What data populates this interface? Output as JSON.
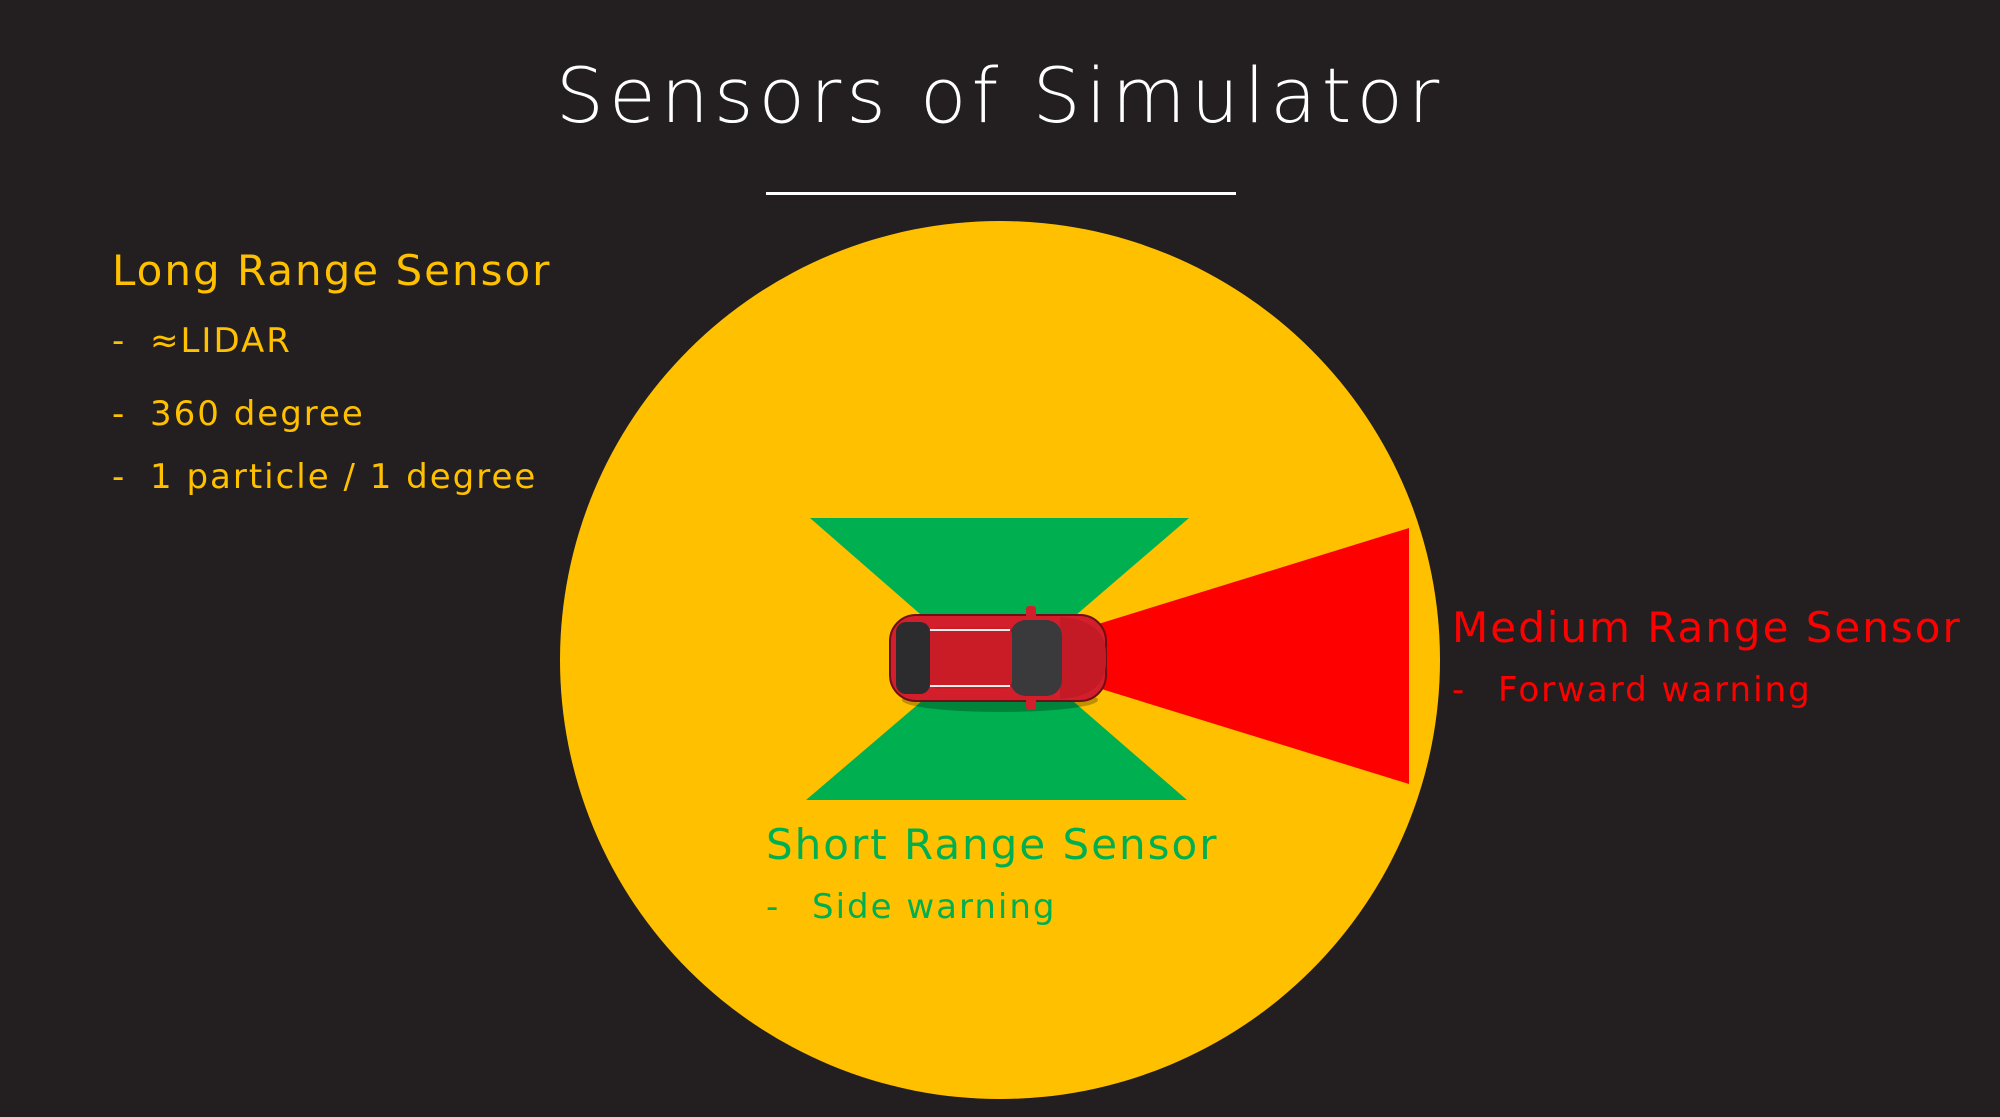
{
  "title": "Sensors of Simulator",
  "colors": {
    "background": "#231f20",
    "long_range": "#ffc000",
    "medium_range": "#ff0000",
    "short_range": "#00b050",
    "car_body": "#d21f2b",
    "car_roof": "#3a3a3c"
  },
  "long_range": {
    "heading": "Long Range Sensor",
    "items": [
      "≈LIDAR",
      "360 degree",
      "1 particle / 1 degree"
    ]
  },
  "medium_range": {
    "heading": "Medium Range Sensor",
    "items": [
      "Forward warning"
    ]
  },
  "short_range": {
    "heading": "Short Range Sensor",
    "items": [
      "Side warning"
    ]
  },
  "icons": [
    "car-icon"
  ]
}
